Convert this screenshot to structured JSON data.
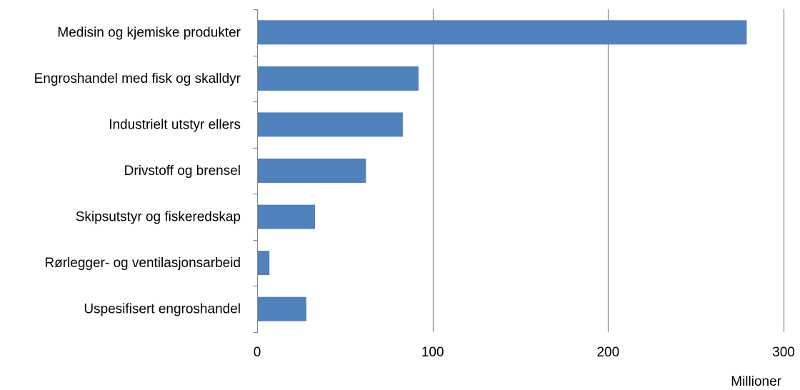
{
  "chart_data": {
    "type": "bar",
    "orientation": "horizontal",
    "categories": [
      "Medisin og kjemiske produkter",
      "Engroshandel med fisk og skalldyr",
      "Industrielt utstyr ellers",
      "Drivstoff og brensel",
      "Skipsutstyr og fiskeredskap",
      "Rørlegger- og ventilasjonsarbeid",
      "Uspesifisert engroshandel"
    ],
    "values": [
      279,
      92,
      83,
      62,
      33,
      7,
      28
    ],
    "xlim": [
      0,
      300
    ],
    "xticks": [
      0,
      100,
      200,
      300
    ],
    "xunit": "Millioner",
    "grid": true,
    "bar_color": "#4f81bd",
    "grid_color": "#868686",
    "axis_color": "#868686"
  }
}
